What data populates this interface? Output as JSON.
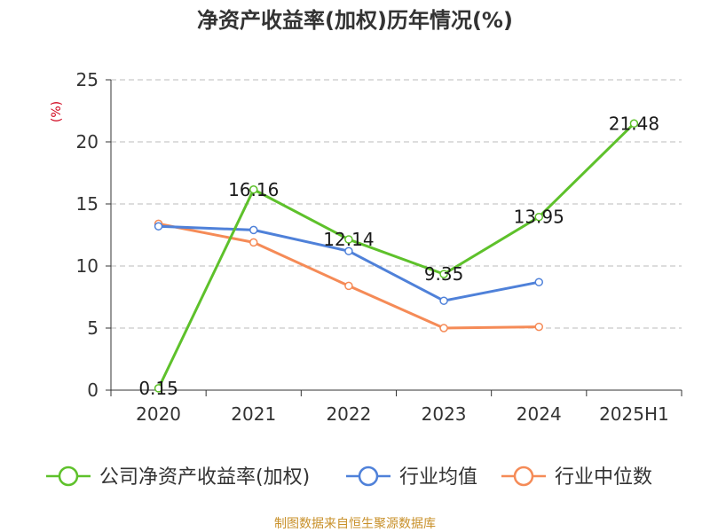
{
  "chart_data": {
    "type": "line",
    "title": "净资产收益率(加权)历年情况(%)",
    "unit_label": "(%)",
    "categories": [
      "2020",
      "2021",
      "2022",
      "2023",
      "2024",
      "2025H1"
    ],
    "ylim": [
      0,
      25
    ],
    "yticks": [
      "0",
      "5",
      "10",
      "15",
      "20",
      "25"
    ],
    "grid": true,
    "legend_position": "bottom",
    "series": [
      {
        "name": "公司净资产收益率(加权)",
        "color": "#5ec12b",
        "values": [
          0.15,
          16.16,
          12.14,
          9.35,
          13.95,
          21.48
        ],
        "labels": [
          "0.15",
          "16.16",
          "12.14",
          "9.35",
          "13.95",
          "21.48"
        ]
      },
      {
        "name": "行业均值",
        "color": "#4f81d9",
        "values": [
          13.2,
          12.9,
          11.2,
          7.2,
          8.7,
          null
        ]
      },
      {
        "name": "行业中位数",
        "color": "#f58b57",
        "values": [
          13.4,
          11.9,
          8.4,
          5.0,
          5.1,
          null
        ]
      }
    ]
  },
  "source": "制图数据来自恒生聚源数据库"
}
